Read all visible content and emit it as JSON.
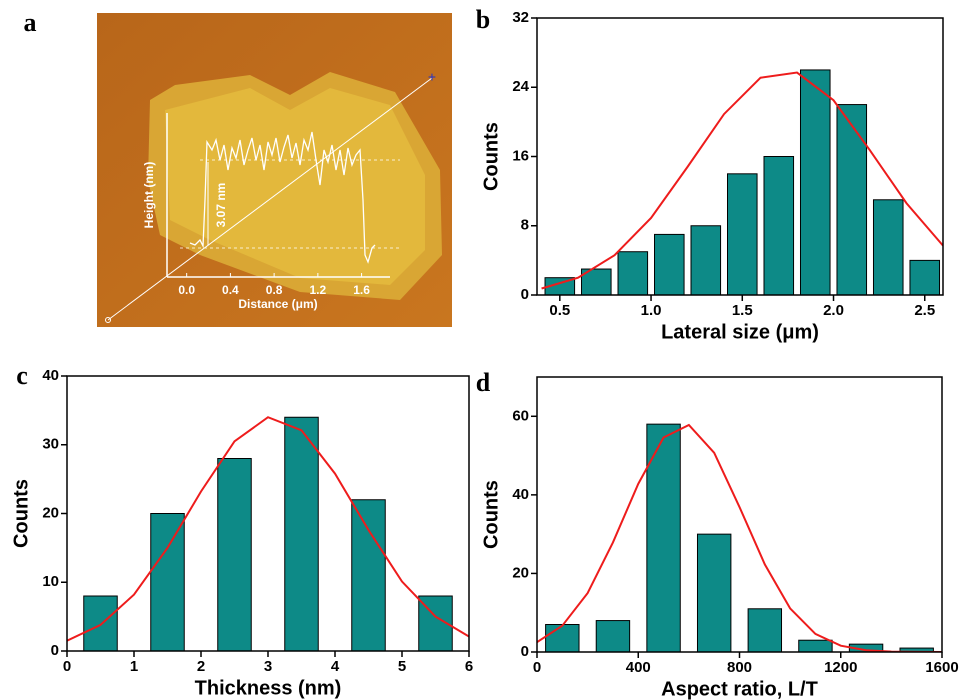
{
  "chart_data": [
    {
      "panel": "a",
      "type": "profile",
      "xlabel": "Distance (μm)",
      "ylabel": "Height (nm)",
      "annotation": "3.07 nm",
      "xlim": [
        -0.18,
        1.86
      ],
      "xticks": [
        {
          "value": 0,
          "label": "0.0"
        },
        0.4,
        0.8,
        1.2,
        1.6
      ]
    },
    {
      "panel": "b",
      "type": "bar",
      "xlabel": "Lateral size (μm)",
      "ylabel": "Counts",
      "color": "#0d8a87",
      "x": [
        0.5,
        0.7,
        0.9,
        1.1,
        1.3,
        1.5,
        1.7,
        1.9,
        2.1,
        2.3,
        2.5
      ],
      "values": [
        2,
        3,
        5,
        7,
        8,
        14,
        16,
        26,
        22,
        11,
        4
      ],
      "fit": {
        "color": "#ee1c1c",
        "x": [
          0.4,
          0.6,
          0.8,
          1.0,
          1.2,
          1.4,
          1.6,
          1.8,
          2.0,
          2.2,
          2.4,
          2.6
        ],
        "values": [
          0.75,
          2.0,
          4.6,
          8.9,
          14.8,
          20.9,
          25.1,
          25.7,
          22.5,
          16.7,
          10.6,
          5.7
        ]
      },
      "xlim": [
        0.375,
        2.6
      ],
      "xticks": [
        0.5,
        {
          "value": 1,
          "label": "1.0"
        },
        1.5,
        {
          "value": 2,
          "label": "2.0"
        },
        2.5
      ],
      "ylim": [
        0,
        32
      ],
      "yticks": [
        0,
        8,
        16,
        24,
        32
      ]
    },
    {
      "panel": "c",
      "type": "bar",
      "xlabel": "Thickness (nm)",
      "ylabel": "Counts",
      "color": "#0d8a87",
      "x": [
        0.5,
        1.5,
        2.5,
        3.5,
        4.5,
        5.5
      ],
      "values": [
        8,
        20,
        28,
        34,
        22,
        8
      ],
      "fit": {
        "color": "#ee1c1c",
        "x": [
          0,
          0.5,
          1,
          1.5,
          2,
          2.5,
          3,
          3.5,
          4,
          4.5,
          5,
          5.5,
          6
        ],
        "values": [
          1.5,
          3.8,
          8.2,
          15.0,
          23.2,
          30.5,
          34.0,
          32.1,
          25.8,
          17.6,
          10.1,
          5.0,
          2.1
        ]
      },
      "xlim": [
        0,
        6
      ],
      "xticks": [
        0,
        1,
        2,
        3,
        4,
        5,
        6
      ],
      "ylim": [
        0,
        40
      ],
      "yticks": [
        0,
        10,
        20,
        30,
        40
      ]
    },
    {
      "panel": "d",
      "type": "bar",
      "xlabel": "Aspect ratio, L/T",
      "ylabel": "Counts",
      "color": "#0d8a87",
      "x": [
        100,
        300,
        500,
        700,
        900,
        1100,
        1300,
        1500
      ],
      "values": [
        7,
        8,
        58,
        30,
        11,
        3,
        2,
        1
      ],
      "fit": {
        "color": "#ee1c1c",
        "x": [
          0,
          100,
          200,
          300,
          400,
          500,
          600,
          700,
          800,
          900,
          1000,
          1100,
          1200,
          1300,
          1400,
          1500,
          1600
        ],
        "values": [
          2.5,
          6.7,
          15.0,
          27.9,
          42.8,
          54.6,
          57.8,
          50.7,
          36.9,
          22.3,
          11.1,
          4.6,
          1.6,
          0.46,
          0.11,
          0.02,
          0.003
        ]
      },
      "xlim": [
        0,
        1600
      ],
      "xticks": [
        0,
        400,
        800,
        1200,
        1600
      ],
      "ylim": [
        0,
        70
      ],
      "yticks": [
        0,
        20,
        40,
        60
      ]
    }
  ]
}
